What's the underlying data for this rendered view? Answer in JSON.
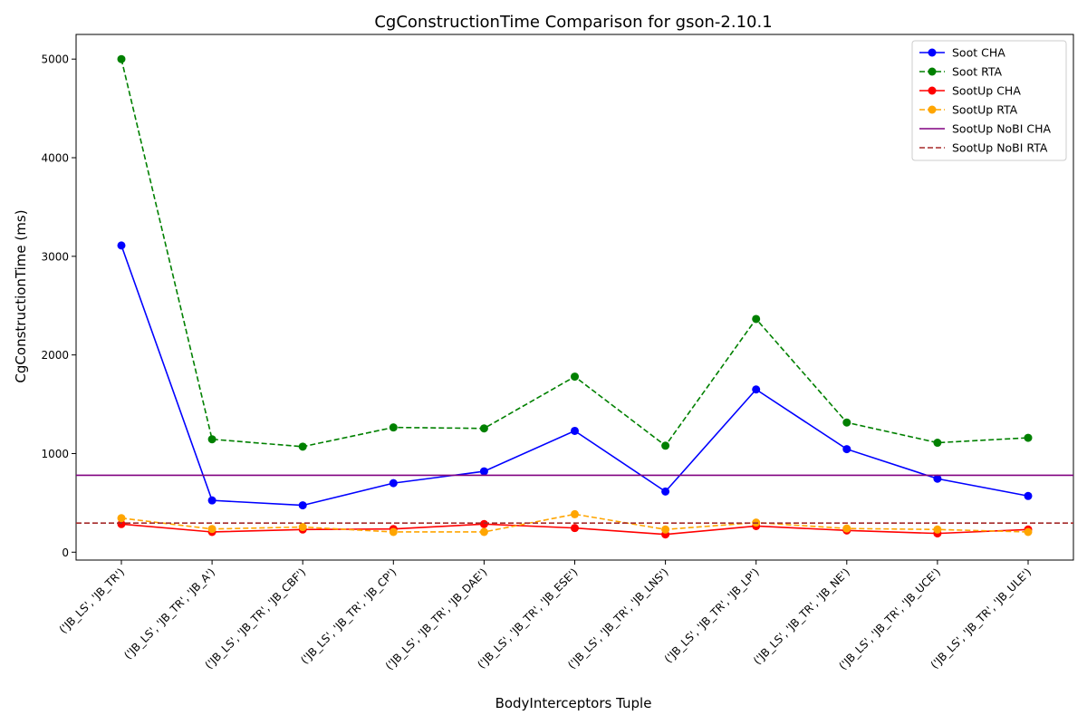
{
  "chart_data": {
    "type": "line",
    "title": "CgConstructionTime Comparison for gson-2.10.1",
    "xlabel": "BodyInterceptors Tuple",
    "ylabel": "CgConstructionTime (ms)",
    "categories": [
      "('JB_LS', 'JB_TR')",
      "('JB_LS', 'JB_TR', 'JB_A')",
      "('JB_LS', 'JB_TR', 'JB_CBF')",
      "('JB_LS', 'JB_TR', 'JB_CP')",
      "('JB_LS', 'JB_TR', 'JB_DAE')",
      "('JB_LS', 'JB_TR', 'JB_ESE')",
      "('JB_LS', 'JB_TR', 'JB_LNS')",
      "('JB_LS', 'JB_TR', 'JB_LP')",
      "('JB_LS', 'JB_TR', 'JB_NE')",
      "('JB_LS', 'JB_TR', 'JB_UCE')",
      "('JB_LS', 'JB_TR', 'JB_ULE')"
    ],
    "ylim": [
      -80,
      5250
    ],
    "yticks": [
      0,
      1000,
      2000,
      3000,
      4000,
      5000
    ],
    "grid": false,
    "legend_position": "top-right",
    "series": [
      {
        "name": "Soot CHA",
        "color": "#0000ff",
        "dash": "solid",
        "marker": true,
        "values": [
          3110,
          525,
          475,
          700,
          820,
          1230,
          615,
          1650,
          1045,
          745,
          570
        ]
      },
      {
        "name": "Soot RTA",
        "color": "#008000",
        "dash": "dashed",
        "marker": true,
        "values": [
          5000,
          1145,
          1070,
          1265,
          1255,
          1780,
          1080,
          2365,
          1315,
          1110,
          1160
        ]
      },
      {
        "name": "SootUp CHA",
        "color": "#ff0000",
        "dash": "solid",
        "marker": true,
        "values": [
          285,
          205,
          230,
          235,
          285,
          245,
          180,
          265,
          220,
          190,
          230
        ]
      },
      {
        "name": "SootUp RTA",
        "color": "#ffa500",
        "dash": "dashed",
        "marker": true,
        "values": [
          345,
          235,
          255,
          205,
          205,
          385,
          230,
          300,
          240,
          230,
          205
        ]
      },
      {
        "name": "SootUp NoBI CHA",
        "color": "#800080",
        "dash": "solid",
        "marker": false,
        "hline": 780
      },
      {
        "name": "SootUp NoBI RTA",
        "color": "#a52a2a",
        "dash": "dashed",
        "marker": false,
        "hline": 295
      }
    ]
  }
}
